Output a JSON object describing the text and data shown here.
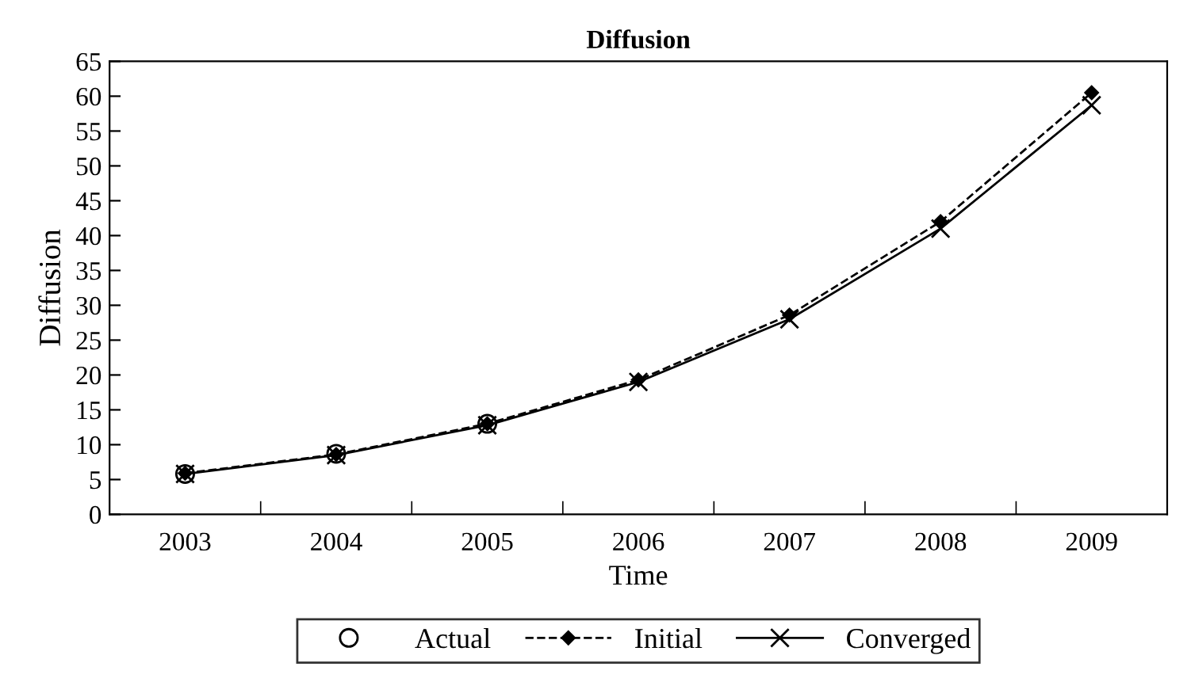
{
  "chart_data": {
    "type": "line",
    "title": "Diffusion",
    "xlabel": "Time",
    "ylabel": "Diffusion",
    "categories": [
      "2003",
      "2004",
      "2005",
      "2006",
      "2007",
      "2008",
      "2009"
    ],
    "ylim": [
      0,
      65
    ],
    "yticks": [
      0,
      5,
      10,
      15,
      20,
      25,
      30,
      35,
      40,
      45,
      50,
      55,
      60,
      65
    ],
    "grid": false,
    "legend": "bottom",
    "series": [
      {
        "name": "Actual",
        "color": "#000000",
        "type": "scatter",
        "marker": "circle",
        "values": [
          5.8,
          8.7,
          13.0,
          null,
          null,
          null,
          null
        ]
      },
      {
        "name": "Initial",
        "color": "#000000",
        "marker": "diamond",
        "line_style": "dashed",
        "values": [
          5.9,
          8.6,
          13.0,
          19.3,
          28.6,
          42.0,
          60.5
        ]
      },
      {
        "name": "Converged",
        "color": "#000000",
        "marker": "cross",
        "line_style": "solid",
        "values": [
          5.8,
          8.5,
          12.8,
          19.0,
          28.0,
          41.0,
          58.7
        ]
      }
    ]
  }
}
